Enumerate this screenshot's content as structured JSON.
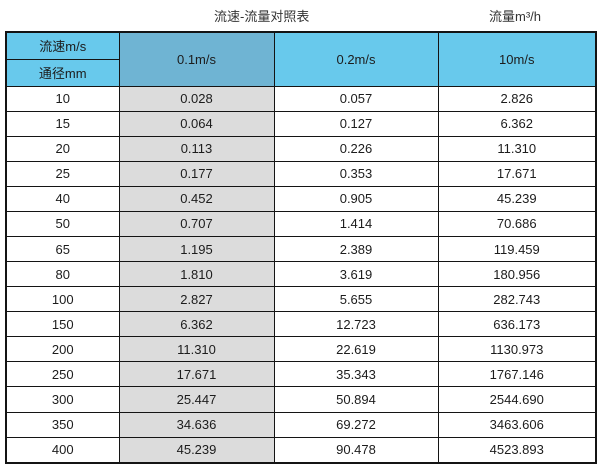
{
  "titles": {
    "main": "流速-流量对照表",
    "right": "流量m³/h"
  },
  "table": {
    "header": {
      "row_label_top": "流速m/s",
      "row_label_bottom": "通径mm",
      "speed_columns": [
        "0.1m/s",
        "0.2m/s",
        "10m/s"
      ]
    },
    "rows": [
      {
        "diameter": "10",
        "values": [
          "0.028",
          "0.057",
          "2.826"
        ]
      },
      {
        "diameter": "15",
        "values": [
          "0.064",
          "0.127",
          "6.362"
        ]
      },
      {
        "diameter": "20",
        "values": [
          "0.113",
          "0.226",
          "11.310"
        ]
      },
      {
        "diameter": "25",
        "values": [
          "0.177",
          "0.353",
          "17.671"
        ]
      },
      {
        "diameter": "40",
        "values": [
          "0.452",
          "0.905",
          "45.239"
        ]
      },
      {
        "diameter": "50",
        "values": [
          "0.707",
          "1.414",
          "70.686"
        ]
      },
      {
        "diameter": "65",
        "values": [
          "1.195",
          "2.389",
          "119.459"
        ]
      },
      {
        "diameter": "80",
        "values": [
          "1.810",
          "3.619",
          "180.956"
        ]
      },
      {
        "diameter": "100",
        "values": [
          "2.827",
          "5.655",
          "282.743"
        ]
      },
      {
        "diameter": "150",
        "values": [
          "6.362",
          "12.723",
          "636.173"
        ]
      },
      {
        "diameter": "200",
        "values": [
          "11.310",
          "22.619",
          "1130.973"
        ]
      },
      {
        "diameter": "250",
        "values": [
          "17.671",
          "35.343",
          "1767.146"
        ]
      },
      {
        "diameter": "300",
        "values": [
          "25.447",
          "50.894",
          "2544.690"
        ]
      },
      {
        "diameter": "350",
        "values": [
          "34.636",
          "69.272",
          "3463.606"
        ]
      },
      {
        "diameter": "400",
        "values": [
          "45.239",
          "90.478",
          "4523.893"
        ]
      }
    ]
  },
  "colors": {
    "header_light_blue": "#68C9EC",
    "header_dark_blue": "#6FB4D3",
    "highlight_column_gray": "#DCDCDC",
    "border": "#141414"
  },
  "chart_data": {
    "type": "table",
    "title": "流速-流量对照表",
    "unit_note": "流量m³/h",
    "columns": [
      "通径mm",
      "0.1m/s",
      "0.2m/s",
      "10m/s"
    ],
    "rows": [
      [
        10,
        0.028,
        0.057,
        2.826
      ],
      [
        15,
        0.064,
        0.127,
        6.362
      ],
      [
        20,
        0.113,
        0.226,
        11.31
      ],
      [
        25,
        0.177,
        0.353,
        17.671
      ],
      [
        40,
        0.452,
        0.905,
        45.239
      ],
      [
        50,
        0.707,
        1.414,
        70.686
      ],
      [
        65,
        1.195,
        2.389,
        119.459
      ],
      [
        80,
        1.81,
        3.619,
        180.956
      ],
      [
        100,
        2.827,
        5.655,
        282.743
      ],
      [
        150,
        6.362,
        12.723,
        636.173
      ],
      [
        200,
        11.31,
        22.619,
        1130.973
      ],
      [
        250,
        17.671,
        35.343,
        1767.146
      ],
      [
        300,
        25.447,
        50.894,
        2544.69
      ],
      [
        350,
        34.636,
        69.272,
        3463.606
      ],
      [
        400,
        45.239,
        90.478,
        4523.893
      ]
    ]
  }
}
